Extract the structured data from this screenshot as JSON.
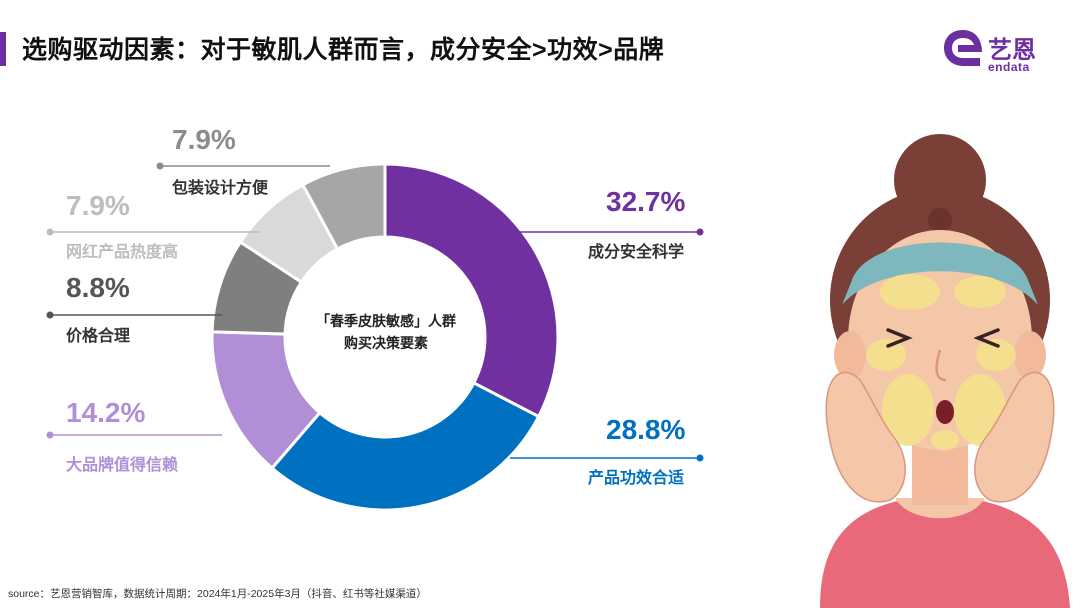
{
  "header": {
    "title": "选购驱动因素：对于敏肌人群而言，成分安全>功效>品牌"
  },
  "logo": {
    "cn": "艺恩",
    "en": "endata"
  },
  "center": {
    "line1": "「春季皮肤敏感」人群",
    "line2": "购买决策要素"
  },
  "colors": {
    "series": [
      "#7030a0",
      "#0070c0",
      "#b18fd6",
      "#7f7f7f",
      "#d9d9d9",
      "#a6a6a6"
    ],
    "accent": "#6b2fa0"
  },
  "chart_data": {
    "type": "pie",
    "donut": true,
    "center_text": "「春季皮肤敏感」人群 购买决策要素",
    "slices": [
      {
        "label": "成分安全科学",
        "value": 32.7,
        "display": "32.7%"
      },
      {
        "label": "产品功效合适",
        "value": 28.8,
        "display": "28.8%"
      },
      {
        "label": "大品牌值得信赖",
        "value": 14.2,
        "display": "14.2%"
      },
      {
        "label": "价格合理",
        "value": 8.8,
        "display": "8.8%"
      },
      {
        "label": "网红产品热度高",
        "value": 7.9,
        "display": "7.9%"
      },
      {
        "label": "包装设计方便",
        "value": 7.9,
        "display": "7.9%"
      }
    ]
  },
  "footer": {
    "source": "source：艺恩营销智库，数据统计周期：2024年1月-2025年3月（抖音、红书等社媒渠道）"
  }
}
